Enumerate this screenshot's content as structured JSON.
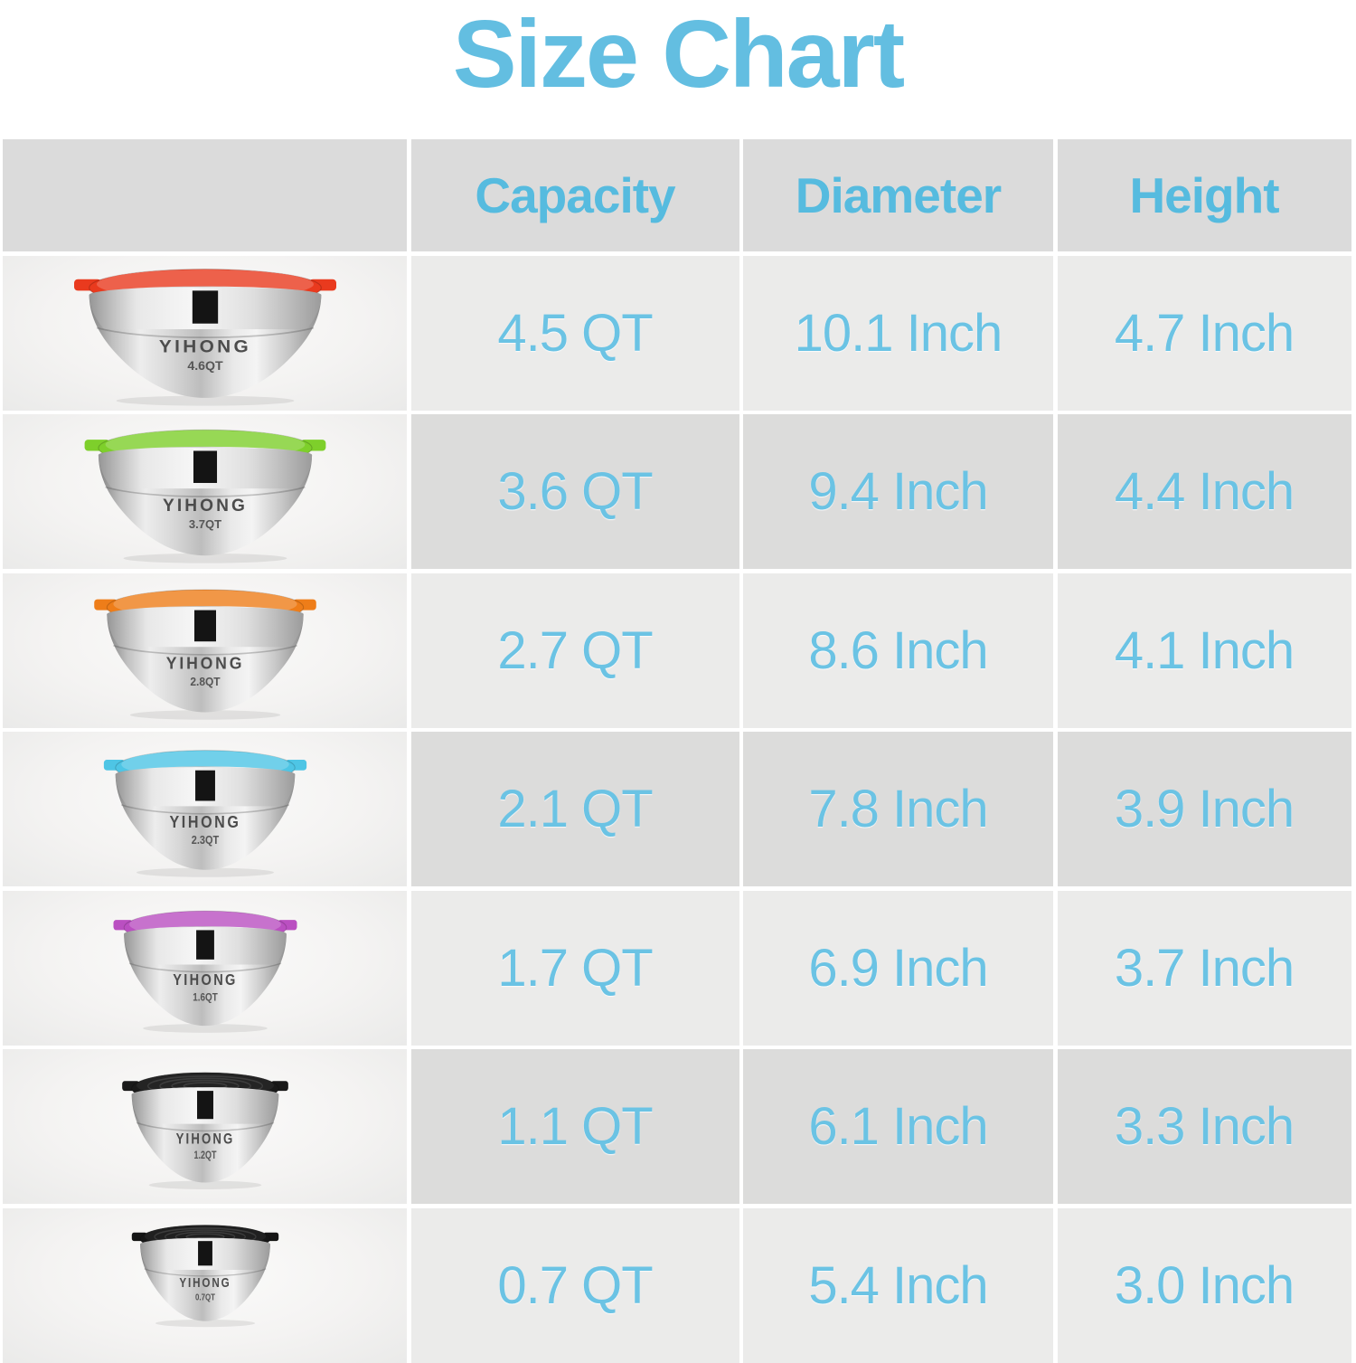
{
  "title": "Size Chart",
  "brand": "YIHONG",
  "colors": {
    "title_text": "#63BEE1",
    "header_text": "#56BBDF",
    "value_text": "#6BC3E4",
    "header_bg": "#DBDBDB",
    "row_bg_a": "#EBEBEA",
    "row_bg_b": "#DCDCDB",
    "page_bg": "#FFFFFF"
  },
  "table": {
    "column_headers": [
      "Capacity",
      "Diameter",
      "Height"
    ],
    "rows": [
      {
        "capacity": "4.5 QT",
        "diameter": "10.1 Inch",
        "height": "4.7 Inch",
        "bowl": {
          "lid_color_name": "red",
          "lid_hex": "#E93A1E",
          "marking": "4.6QT"
        }
      },
      {
        "capacity": "3.6 QT",
        "diameter": "9.4 Inch",
        "height": "4.4 Inch",
        "bowl": {
          "lid_color_name": "green",
          "lid_hex": "#7ECF2B",
          "marking": "3.7QT"
        }
      },
      {
        "capacity": "2.7 QT",
        "diameter": "8.6 Inch",
        "height": "4.1 Inch",
        "bowl": {
          "lid_color_name": "orange",
          "lid_hex": "#EE7D19",
          "marking": "2.8QT"
        }
      },
      {
        "capacity": "2.1 QT",
        "diameter": "7.8 Inch",
        "height": "3.9 Inch",
        "bowl": {
          "lid_color_name": "blue",
          "lid_hex": "#4EC5E5",
          "marking": "2.3QT"
        }
      },
      {
        "capacity": "1.7 QT",
        "diameter": "6.9 Inch",
        "height": "3.7 Inch",
        "bowl": {
          "lid_color_name": "purple",
          "lid_hex": "#BA4FC1",
          "marking": "1.6QT"
        }
      },
      {
        "capacity": "1.1 QT",
        "diameter": "6.1 Inch",
        "height": "3.3 Inch",
        "bowl": {
          "lid_color_name": "black",
          "lid_hex": "#191919",
          "marking": "1.2QT"
        }
      },
      {
        "capacity": "0.7 QT",
        "diameter": "5.4 Inch",
        "height": "3.0 Inch",
        "bowl": {
          "lid_color_name": "black",
          "lid_hex": "#151515",
          "marking": "0.7QT"
        }
      }
    ]
  },
  "chart_data": {
    "type": "table",
    "title": "Size Chart",
    "columns": [
      "Capacity",
      "Diameter",
      "Height"
    ],
    "rows": [
      [
        "4.5 QT",
        "10.1 Inch",
        "4.7 Inch"
      ],
      [
        "3.6 QT",
        "9.4 Inch",
        "4.4 Inch"
      ],
      [
        "2.7 QT",
        "8.6 Inch",
        "4.1 Inch"
      ],
      [
        "2.1 QT",
        "7.8 Inch",
        "3.9 Inch"
      ],
      [
        "1.7 QT",
        "6.9 Inch",
        "3.7 Inch"
      ],
      [
        "1.1 QT",
        "6.1 Inch",
        "3.3 Inch"
      ],
      [
        "0.7 QT",
        "5.4 Inch",
        "3.0 Inch"
      ]
    ],
    "row_lid_colors": [
      "red",
      "green",
      "orange",
      "blue",
      "purple",
      "black",
      "black"
    ],
    "bowl_markings": [
      "4.6QT",
      "3.7QT",
      "2.8QT",
      "2.3QT",
      "1.6QT",
      "1.2QT",
      "0.7QT"
    ]
  }
}
